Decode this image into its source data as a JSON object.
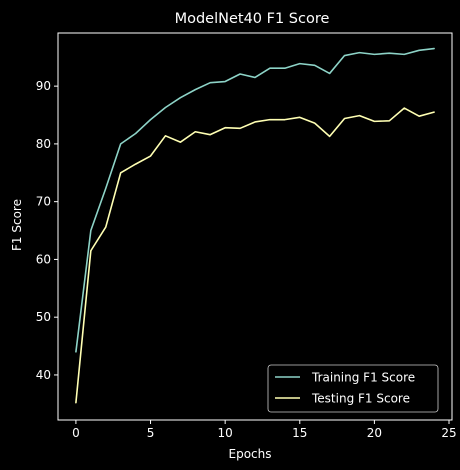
{
  "chart_data": {
    "type": "line",
    "title": "ModelNet40 F1 Score",
    "xlabel": "Epochs",
    "ylabel": "F1 Score",
    "xlim": [
      -1.2,
      25.2
    ],
    "ylim": [
      32.2,
      99.2
    ],
    "xticks": [
      0,
      5,
      10,
      15,
      20,
      25
    ],
    "yticks": [
      40,
      50,
      60,
      70,
      80,
      90
    ],
    "grid": false,
    "legend_position": "lower-right",
    "background": "#000000",
    "x": [
      0,
      1,
      2,
      3,
      4,
      5,
      6,
      7,
      8,
      9,
      10,
      11,
      12,
      13,
      14,
      15,
      16,
      17,
      18,
      19,
      20,
      21,
      22,
      23,
      24
    ],
    "series": [
      {
        "name": "Training F1 Score",
        "color": "#8dd3c7",
        "values": [
          44.0,
          65.0,
          72.3,
          80.0,
          81.8,
          84.2,
          86.3,
          88.0,
          89.4,
          90.6,
          90.8,
          92.1,
          91.5,
          93.1,
          93.1,
          93.9,
          93.6,
          92.2,
          95.3,
          95.8,
          95.5,
          95.7,
          95.5,
          96.2,
          96.5
        ]
      },
      {
        "name": "Testing F1 Score",
        "color": "#ffffb3",
        "values": [
          35.2,
          61.5,
          65.6,
          75.0,
          76.5,
          77.9,
          81.4,
          80.3,
          82.1,
          81.6,
          82.8,
          82.7,
          83.8,
          84.2,
          84.2,
          84.6,
          83.6,
          81.3,
          84.4,
          84.9,
          83.9,
          84.0,
          86.2,
          84.8,
          85.5
        ]
      }
    ]
  }
}
